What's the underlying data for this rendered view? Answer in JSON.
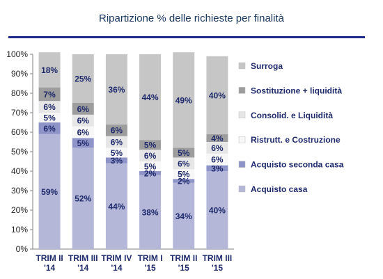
{
  "chart_data": {
    "type": "bar",
    "stacked": true,
    "title": "Ripartizione % delle richieste per finalità",
    "categories": [
      "TRIM II\n'14",
      "TRIM III\n'14",
      "TRIM IV\n'14",
      "TRIM I\n'15",
      "TRIM II\n'15",
      "TRIM III\n'15"
    ],
    "series": [
      {
        "name": "Acquisto casa",
        "values": [
          59,
          52,
          44,
          38,
          34,
          40
        ],
        "color": "#b4b7d8"
      },
      {
        "name": "Acquisto seconda casa",
        "values": [
          6,
          5,
          3,
          2,
          2,
          3
        ],
        "color": "#8f94c8"
      },
      {
        "name": "Ristrutt. e Costruzione",
        "values": [
          5,
          6,
          5,
          5,
          5,
          6
        ],
        "color": "#f7f7f7"
      },
      {
        "name": "Consolid. e Liquidità",
        "values": [
          6,
          6,
          6,
          6,
          6,
          6
        ],
        "color": "#e6e6e6"
      },
      {
        "name": "Sostituzione + liquidità",
        "values": [
          7,
          6,
          6,
          5,
          5,
          4
        ],
        "color": "#9d9d9d"
      },
      {
        "name": "Surroga",
        "values": [
          18,
          25,
          36,
          44,
          49,
          40
        ],
        "color": "#c6c6c6"
      }
    ],
    "data_labels": [
      [
        "59%",
        "6%",
        "5%",
        "6%",
        "7%",
        "18%"
      ],
      [
        "52%",
        "5%",
        "6%",
        "6%",
        "6%",
        "25%"
      ],
      [
        "44%",
        "3%",
        "5%",
        "6%",
        "6%",
        "36%"
      ],
      [
        "38%",
        "2%",
        "5%",
        "6%",
        "5%",
        "44%"
      ],
      [
        "34%",
        "2%",
        "5%",
        "6%",
        "5%",
        "49%"
      ],
      [
        "40%",
        "3%",
        "6%",
        "6%",
        "4%",
        "40%"
      ]
    ],
    "ylim": [
      0,
      100
    ],
    "yticks": [
      "0%",
      "10%",
      "20%",
      "30%",
      "40%",
      "50%",
      "60%",
      "70%",
      "80%",
      "90%",
      "100%"
    ],
    "legend_position": "right",
    "grid": false
  }
}
